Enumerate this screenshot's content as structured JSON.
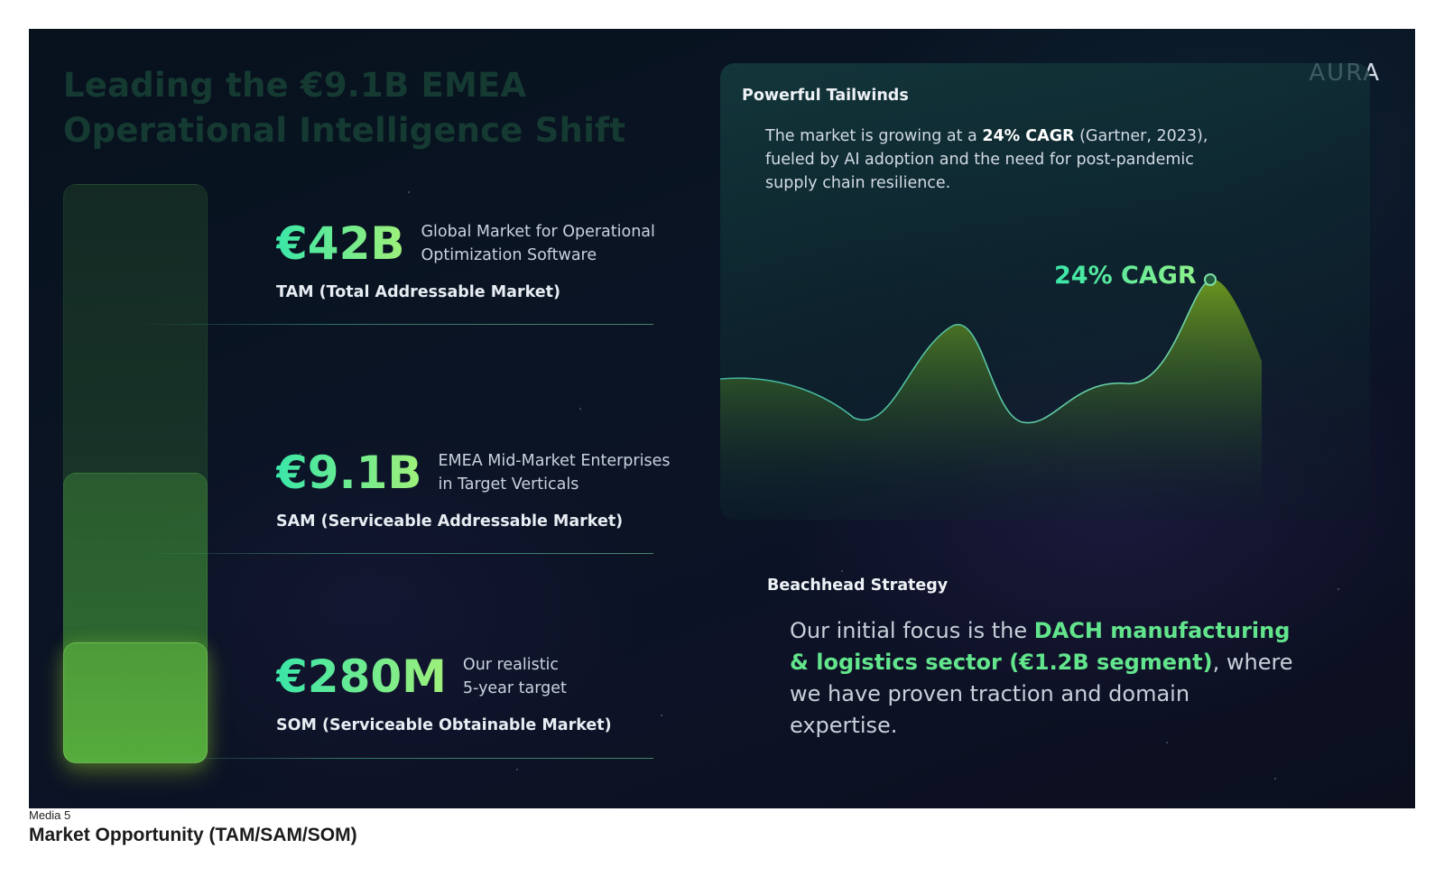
{
  "slide": {
    "headline_line1": "Leading the €9.1B EMEA",
    "headline_line2": "Operational Intelligence Shift",
    "logo": "AURA",
    "metrics": [
      {
        "value": "€42B",
        "desc_line1": "Global Market for Operational",
        "desc_line2": "Optimization Software",
        "label": "TAM (Total Addressable Market)"
      },
      {
        "value": "€9.1B",
        "desc_line1": "EMEA Mid-Market Enterprises",
        "desc_line2": "in Target Verticals",
        "label": "SAM (Serviceable Addressable Market)"
      },
      {
        "value": "€280M",
        "desc_line1": "Our realistic",
        "desc_line2": "5-year target",
        "label": "SOM (Serviceable Obtainable Market)"
      }
    ],
    "tailwinds": {
      "title": "Powerful Tailwinds",
      "text_before": "The market is growing at a ",
      "text_bold": "24% CAGR",
      "text_after": " (Gartner, 2023), fueled by AI adoption and the need for post-pandemic supply chain resilience.",
      "chart_label": "24% CAGR"
    },
    "beachhead": {
      "title": "Beachhead Strategy",
      "text_before": "Our initial focus is the ",
      "text_highlight": "DACH manufacturing & logistics sector (€1.2B segment)",
      "text_after": ", where we have proven traction and domain expertise."
    },
    "colors": {
      "accent_green": "#62e58c",
      "accent_teal": "#3ae6a8"
    }
  },
  "caption": {
    "media_label": "Media 5",
    "title": "Market Opportunity (TAM/SAM/SOM)"
  }
}
